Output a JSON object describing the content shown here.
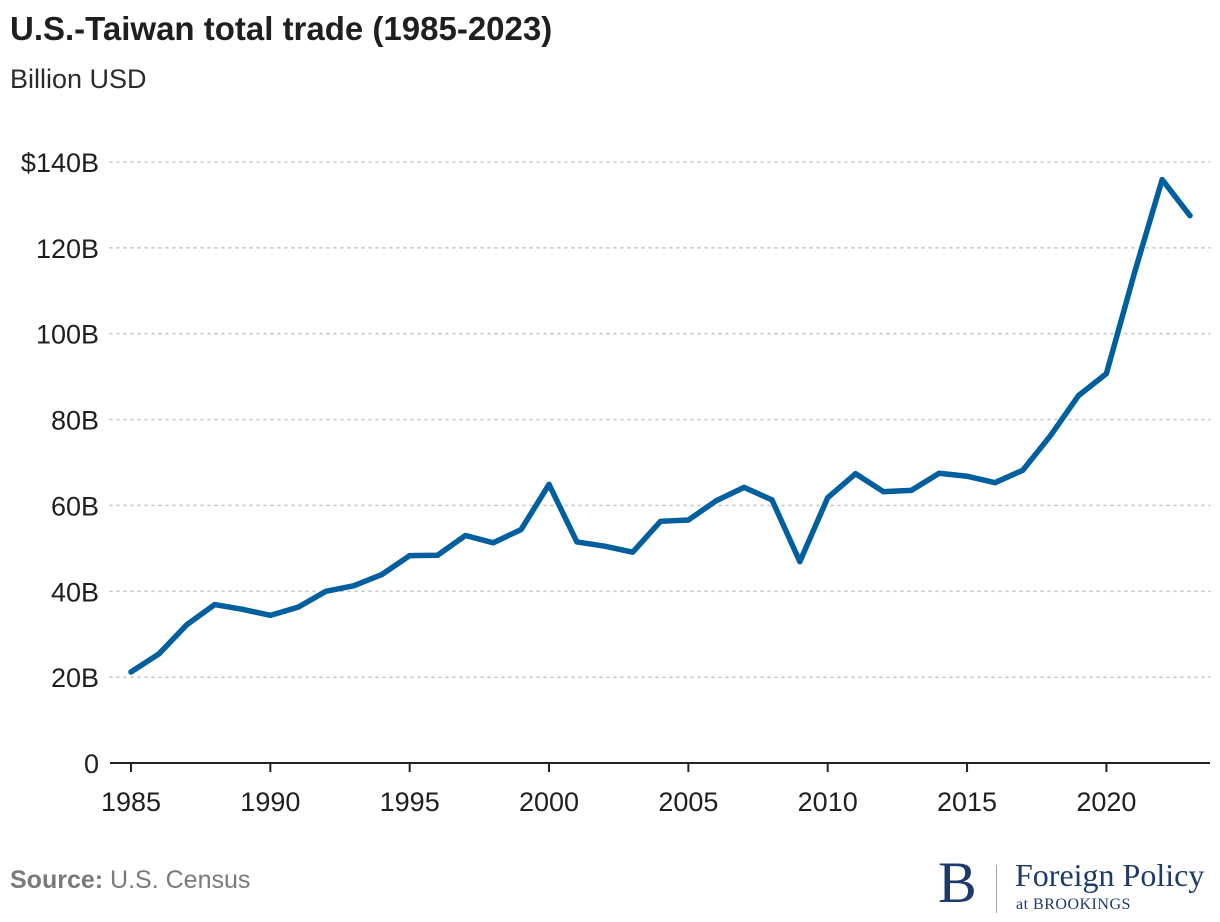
{
  "header": {
    "title": "U.S.-Taiwan total trade (1985-2023)",
    "subtitle": "Billion USD"
  },
  "footer": {
    "source_label": "Source:",
    "source_text": "U.S. Census"
  },
  "logo": {
    "mark": "B",
    "name": "Foreign Policy",
    "sub": "at BROOKINGS"
  },
  "colors": {
    "line": "#005f9e",
    "grid": "#c8c8c8",
    "axis": "#222222",
    "brand": "#1d3a6b"
  },
  "chart_data": {
    "type": "line",
    "title": "U.S.-Taiwan total trade (1985-2023)",
    "subtitle": "Billion USD",
    "xlabel": "",
    "ylabel": "",
    "xlim": [
      1985,
      2023
    ],
    "ylim": [
      0,
      140
    ],
    "x_ticks": [
      1985,
      1990,
      1995,
      2000,
      2005,
      2010,
      2015,
      2020
    ],
    "x_tick_labels": [
      "1985",
      "1990",
      "1995",
      "2000",
      "2005",
      "2010",
      "2015",
      "2020"
    ],
    "y_ticks": [
      0,
      20,
      40,
      60,
      80,
      100,
      120,
      140
    ],
    "y_tick_labels": [
      "0",
      "20B",
      "40B",
      "60B",
      "80B",
      "100B",
      "120B",
      "$140B"
    ],
    "grid": true,
    "legend": "none",
    "series": [
      {
        "x": [
          1985,
          1986,
          1987,
          1988,
          1989,
          1990,
          1991,
          1992,
          1993,
          1994,
          1995,
          1996,
          1997,
          1998,
          1999,
          2000,
          2001,
          2002,
          2003,
          2004,
          2005,
          2006,
          2007,
          2008,
          2009,
          2010,
          2011,
          2012,
          2013,
          2014,
          2015,
          2016,
          2017,
          2018,
          2019,
          2020,
          2021,
          2022,
          2023
        ],
        "values": [
          21.2,
          25.4,
          32.2,
          36.9,
          35.8,
          34.4,
          36.3,
          40.0,
          41.3,
          43.9,
          48.3,
          48.4,
          53.0,
          51.3,
          54.4,
          64.9,
          51.5,
          50.5,
          49.1,
          56.3,
          56.6,
          61.1,
          64.2,
          61.3,
          46.9,
          61.8,
          67.4,
          63.2,
          63.5,
          67.5,
          66.8,
          65.3,
          68.2,
          76.3,
          85.6,
          90.7,
          114.0,
          135.9,
          127.5
        ]
      }
    ]
  }
}
